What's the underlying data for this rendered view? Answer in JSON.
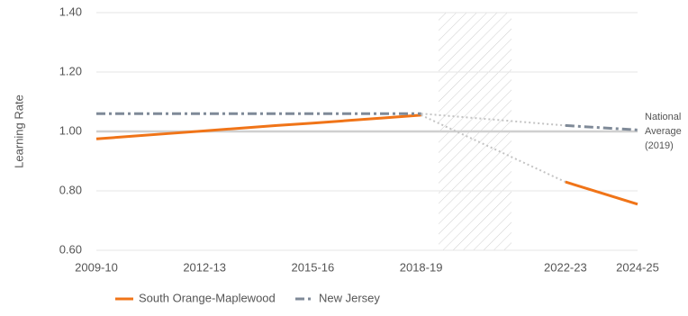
{
  "chart_data": {
    "type": "line",
    "ylabel": "Learning Rate",
    "categories": [
      "2009-10",
      null,
      null,
      "2012-13",
      null,
      null,
      "2015-16",
      null,
      null,
      "2018-19",
      null,
      null,
      null,
      "2022-23",
      null,
      "2024-25"
    ],
    "series": [
      {
        "name": "South Orange-Maplewood",
        "color": "#f07418",
        "dash": "solid",
        "values": [
          0.975,
          0.984,
          0.993,
          1.002,
          1.011,
          1.02,
          1.028,
          1.037,
          1.046,
          1.055,
          null,
          null,
          null,
          0.83,
          0.7925,
          0.755
        ]
      },
      {
        "name": "New Jersey",
        "color": "#7f8a98",
        "dash": "dashdot",
        "values": [
          1.06,
          1.06,
          1.06,
          1.06,
          1.06,
          1.06,
          1.06,
          1.06,
          1.06,
          1.06,
          null,
          null,
          null,
          1.02,
          1.0125,
          1.005
        ]
      }
    ],
    "ylim": [
      0.6,
      1.4
    ],
    "yticks": [
      {
        "value": 0.6,
        "label": "0.60"
      },
      {
        "value": 0.8,
        "label": "0.80"
      },
      {
        "value": 1.0,
        "label": "1.00"
      },
      {
        "value": 1.2,
        "label": "1.20"
      },
      {
        "value": 1.4,
        "label": "1.40"
      }
    ],
    "grid": true,
    "reference_line": {
      "value": 1.0,
      "label": [
        "National",
        "Average",
        "(2019)"
      ]
    },
    "legend": "bottom"
  }
}
